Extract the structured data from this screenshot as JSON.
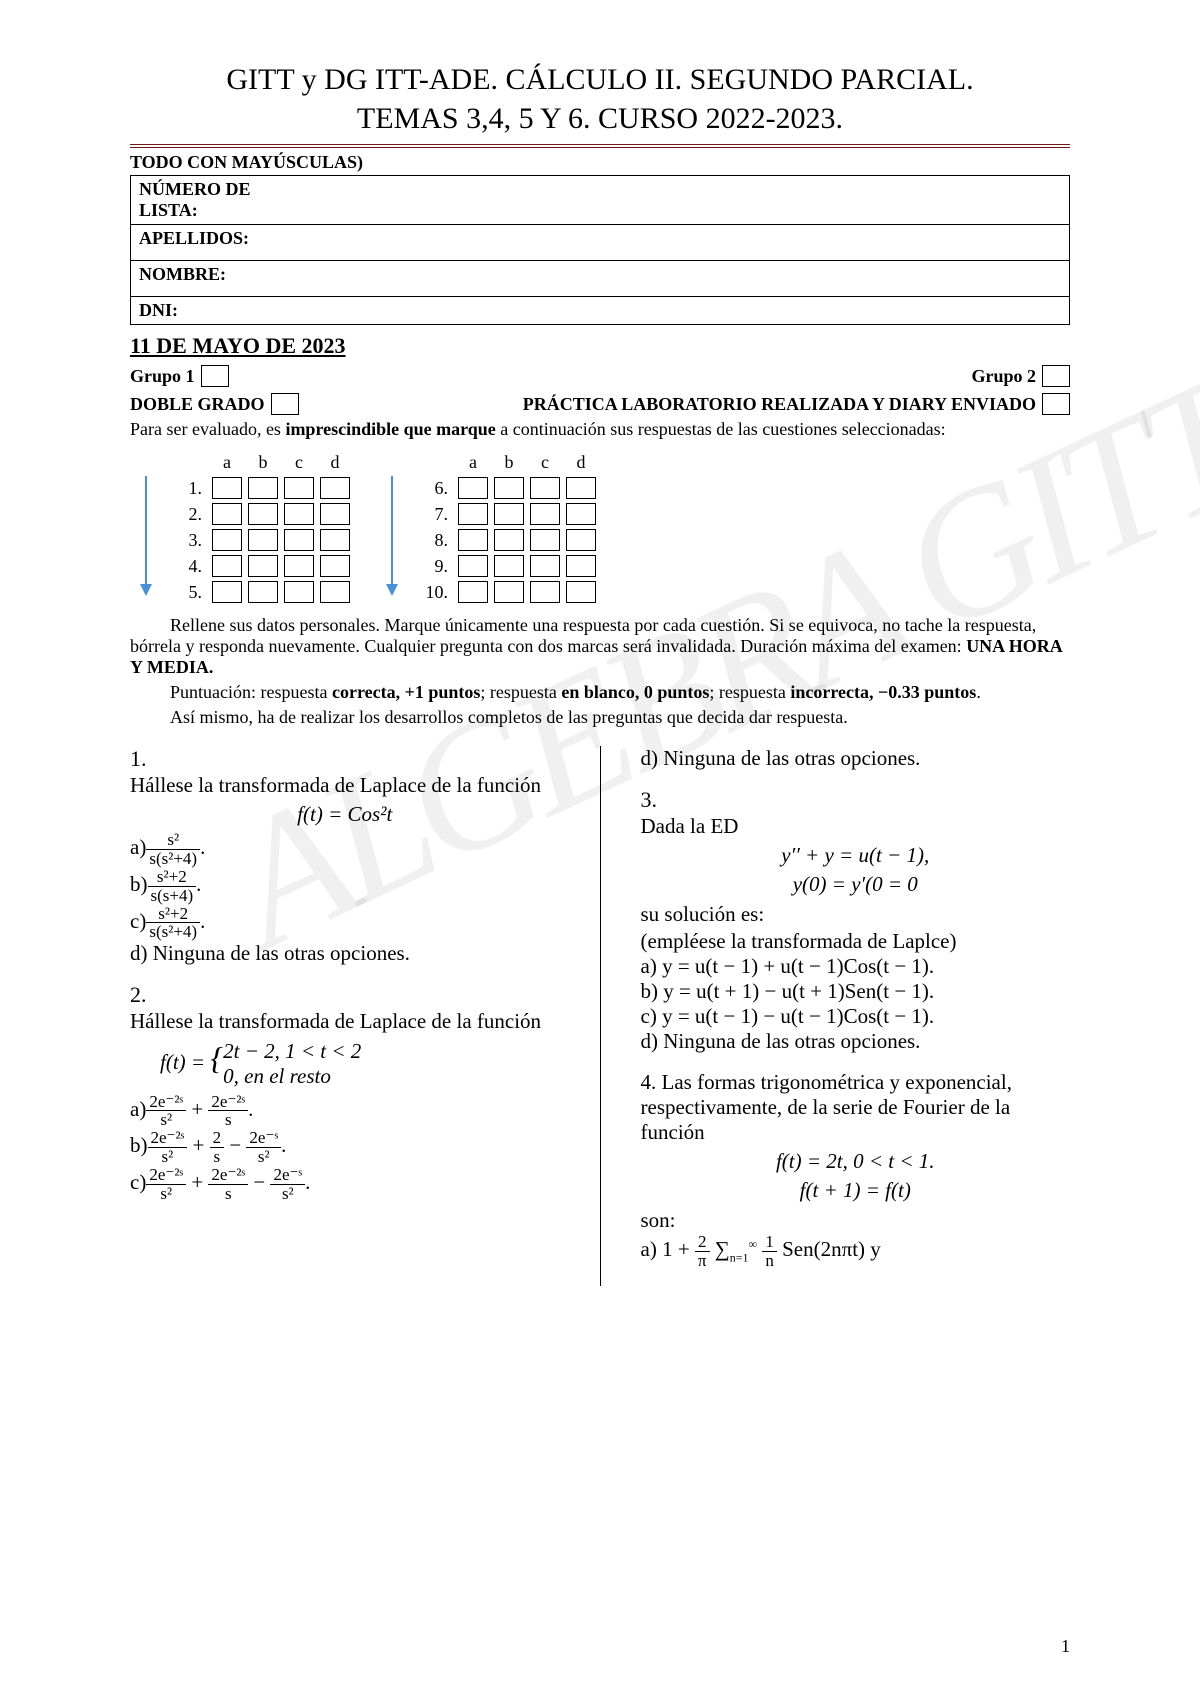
{
  "title_line1": "GITT y DG ITT-ADE. CÁLCULO II. SEGUNDO PARCIAL.",
  "title_line2": "TEMAS 3,4, 5 Y 6. CURSO 2022-2023.",
  "todo": "TODO CON MAYÚSCULAS)",
  "info": {
    "numero": "NÚMERO DE LISTA:",
    "apellidos": "APELLIDOS:",
    "nombre": "NOMBRE:",
    "dni": "DNI:"
  },
  "date": "11 DE MAYO DE 2023",
  "grupo1": "Grupo 1",
  "grupo2": "Grupo 2",
  "doble": "DOBLE GRADO",
  "practica": "PRÁCTICA LABORATORIO REALIZADA Y DIARY ENVIADO",
  "intro_1": "Para ser evaluado, es ",
  "intro_b": "imprescindible que marque",
  "intro_2": " a continuación sus respuestas de las cuestiones seleccionadas:",
  "cols": [
    "a",
    "b",
    "c",
    "d"
  ],
  "rows_left": [
    "1.",
    "2.",
    "3.",
    "4.",
    "5."
  ],
  "rows_right": [
    "6.",
    "7.",
    "8.",
    "9.",
    "10."
  ],
  "note1": "Rellene sus datos personales. Marque únicamente una respuesta por cada cuestión. Si se equivoca, no tache la respuesta, bórrela y responda nuevamente. Cualquier pregunta con dos marcas será invalidada. Duración máxima del examen: ",
  "note1b": "UNA HORA Y MEDIA.",
  "note2a": "Puntuación: respuesta ",
  "note2b": "correcta, +1 puntos",
  "note2c": "; respuesta ",
  "note2d": "en blanco, 0 puntos",
  "note2e": "; respuesta ",
  "note2f": "incorrecta, −0.33 puntos",
  "note2g": ".",
  "note3": "Así mismo, ha de realizar los desarrollos completos de las preguntas que decida dar respuesta.",
  "q1": {
    "num": "1.",
    "prompt": "Hállese la transformada de Laplace de la función",
    "eq": "f(t) = Cos²t",
    "a_pre": "a)",
    "a_n": "s²",
    "a_d": "s(s²+4)",
    "b_pre": "b)",
    "b_n": "s²+2",
    "b_d": "s(s+4)",
    "c_pre": "c)",
    "c_n": "s²+2",
    "c_d": "s(s²+4)",
    "d": "d) Ninguna de las otras opciones."
  },
  "q2": {
    "num": "2.",
    "prompt": "Hállese la transformada de Laplace de la función",
    "eq1": "f(t) = {",
    "eq1a": "2t − 2, 1 < t < 2",
    "eq1b": "0, en el resto",
    "a": "a)",
    "b": "b)",
    "c": "c)"
  },
  "q2d": "d) Ninguna de las otras opciones.",
  "q3": {
    "num": "3.",
    "prompt": "Dada la ED",
    "eq1": "y′′ + y = u(t − 1),",
    "eq2": "y(0) = y′(0 = 0",
    "sol": "su solución es:",
    "hint": "(empléese la transformada de Laplce)",
    "a": "a) y = u(t − 1) + u(t − 1)Cos(t − 1).",
    "b": "b) y = u(t + 1) − u(t + 1)Sen(t − 1).",
    "c": "c) y = u(t − 1) − u(t − 1)Cos(t − 1).",
    "d": "d) Ninguna de las otras opciones."
  },
  "q4": {
    "num": "4.",
    "prompt": "Las formas trigonométrica y exponencial, respectivamente, de la serie de Fourier de la función",
    "eq1": "f(t) = 2t, 0 < t < 1.",
    "eq2": "f(t + 1) = f(t)",
    "son": "son:",
    "a": "a) 1 + "
  },
  "page": "1",
  "arrow_color": "#4a90d9"
}
